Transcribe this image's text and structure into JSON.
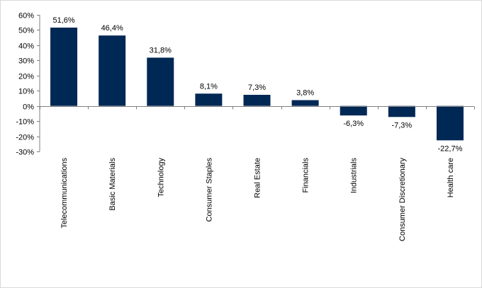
{
  "chart_data": {
    "type": "bar",
    "title": "",
    "xlabel": "",
    "ylabel": "",
    "categories": [
      "Telecommunications",
      "Basic Materials",
      "Technology",
      "Consumer Staples",
      "Real Estate",
      "Financials",
      "Industrials",
      "Consumer Discretionary",
      "Health care"
    ],
    "values": [
      51.6,
      46.4,
      31.8,
      8.1,
      7.3,
      3.8,
      -6.3,
      -7.3,
      -22.7
    ],
    "data_labels": [
      "51,6%",
      "46,4%",
      "31,8%",
      "8,1%",
      "7,3%",
      "3,8%",
      "-6,3%",
      "-7,3%",
      "-22,7%"
    ],
    "ylim": [
      -30,
      60
    ],
    "yticks": [
      60,
      50,
      40,
      30,
      20,
      10,
      0,
      -10,
      -20,
      -30
    ],
    "ytick_labels": [
      "60%",
      "50%",
      "40%",
      "30%",
      "20%",
      "10%",
      "0%",
      "-10%",
      "-20%",
      "-30%"
    ],
    "grid": false,
    "legend": "none",
    "bar_color": "#002855",
    "axis_color": "#7f7f7f"
  }
}
